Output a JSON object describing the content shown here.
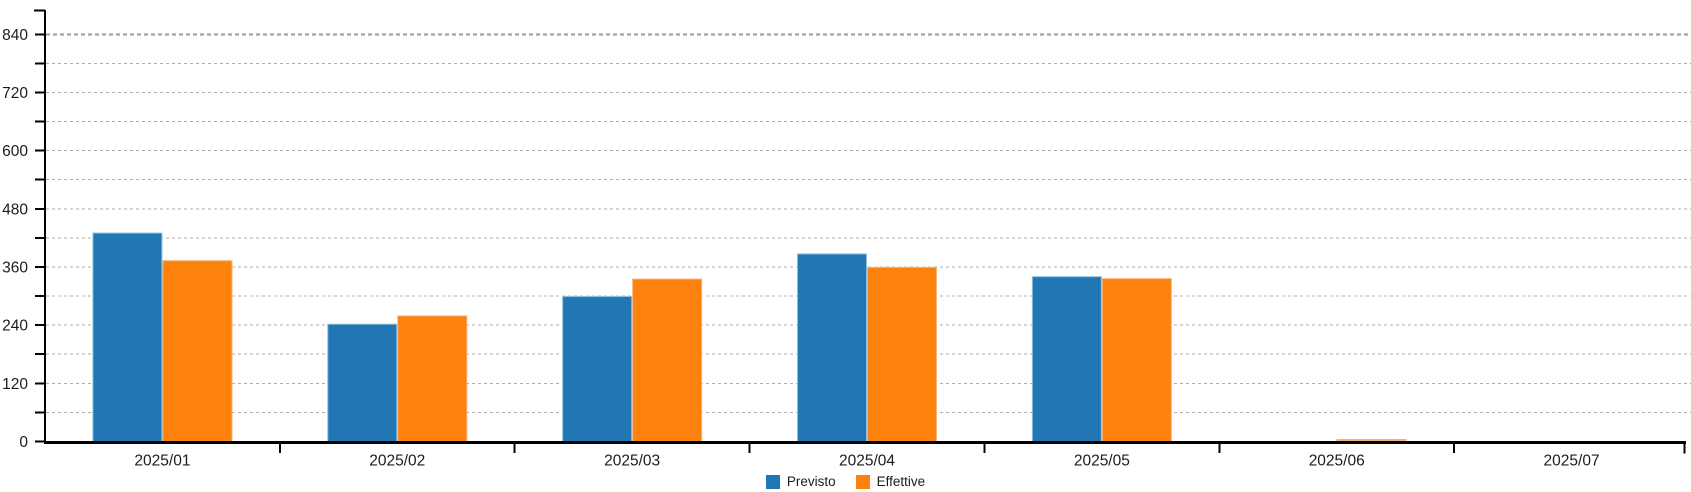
{
  "chart_data": {
    "type": "bar",
    "title": "",
    "xlabel": "",
    "ylabel": "",
    "categories": [
      "2025/01",
      "2025/02",
      "2025/03",
      "2025/04",
      "2025/05",
      "2025/06",
      "2025/07"
    ],
    "series": [
      {
        "name": "Previsto",
        "color": "#2077B4",
        "edge_color": "#8CC0E2",
        "values": [
          430,
          242,
          299,
          387,
          340,
          null,
          null
        ]
      },
      {
        "name": "Effettive",
        "color": "#FD810D",
        "edge_color": "#F2B27C",
        "values": [
          373,
          259,
          335,
          359,
          336,
          0,
          null
        ]
      }
    ],
    "ylim": [
      0,
      870
    ],
    "y_major_step": 120,
    "y_minor_step": 60,
    "y_tick_labels": [
      "0",
      "120",
      "240",
      "360",
      "480",
      "600",
      "720",
      "840"
    ],
    "grid": {
      "horizontal": true,
      "style": "dashed",
      "color": "#ADADAD",
      "top_line_color": "#9B9B9B"
    },
    "legend": {
      "position": "bottom-center"
    },
    "axis_color": "#000000",
    "text_color": "#1C1C1C",
    "background": "#FFFFFF"
  }
}
